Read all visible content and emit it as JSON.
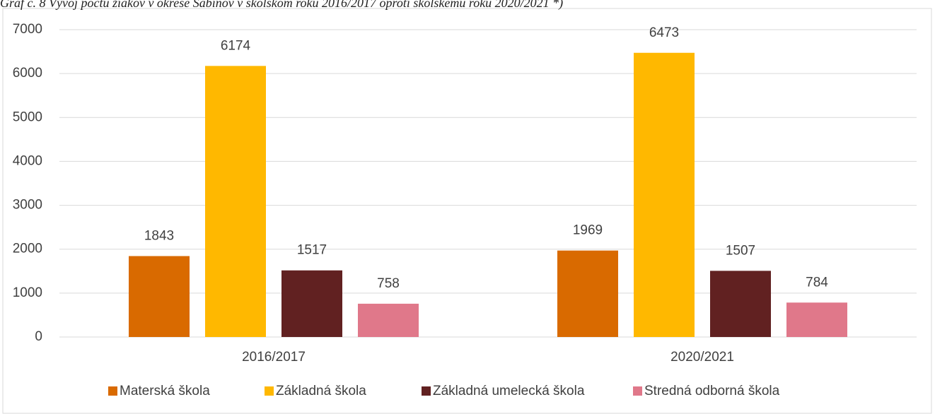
{
  "chart_data": {
    "type": "bar",
    "title": "Graf č. 8 Vývoj počtu žiakov v okrese Sabinov v školskom roku 2016/2017 oproti školskému roku 2020/2021 *)",
    "categories": [
      "2016/2017",
      "2020/2021"
    ],
    "series": [
      {
        "name": "Materská škola",
        "color": "#D96A00",
        "values": [
          1843,
          1969
        ]
      },
      {
        "name": "Základná škola",
        "color": "#FFB800",
        "values": [
          6174,
          6473
        ]
      },
      {
        "name": "Základná umelecká škola",
        "color": "#612121",
        "values": [
          1517,
          1507
        ]
      },
      {
        "name": "Stredná odborná škola",
        "color": "#E0788A",
        "values": [
          758,
          784
        ]
      }
    ],
    "ylim": [
      0,
      7000
    ],
    "yticks": [
      0,
      1000,
      2000,
      3000,
      4000,
      5000,
      6000,
      7000
    ],
    "grid": true,
    "legend": "bottom"
  }
}
